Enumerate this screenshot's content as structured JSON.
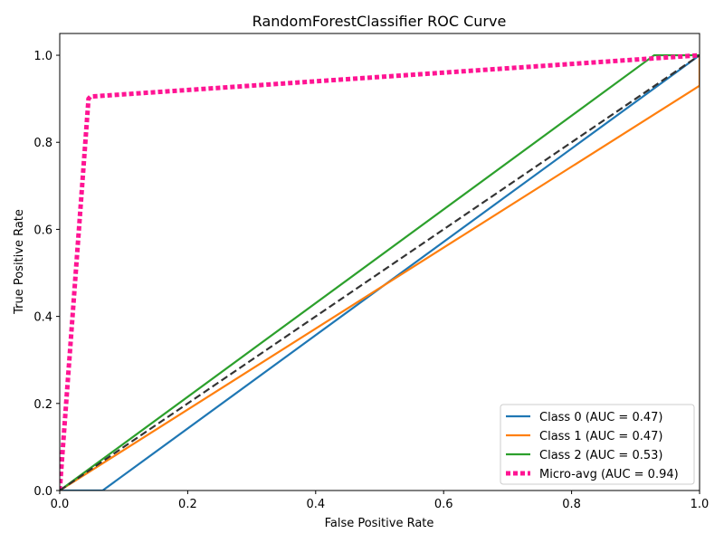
{
  "chart_data": {
    "type": "line",
    "title": "RandomForestClassifier ROC Curve",
    "xlabel": "False Positive Rate",
    "ylabel": "True Positive Rate",
    "xlim": [
      0.0,
      1.0
    ],
    "ylim": [
      0.0,
      1.05
    ],
    "xticks": [
      0.0,
      0.2,
      0.4,
      0.6,
      0.8,
      1.0
    ],
    "yticks": [
      0.0,
      0.2,
      0.4,
      0.6,
      0.8,
      1.0
    ],
    "xtick_labels": [
      "0.0",
      "0.2",
      "0.4",
      "0.6",
      "0.8",
      "1.0"
    ],
    "ytick_labels": [
      "0.0",
      "0.2",
      "0.4",
      "0.6",
      "0.8",
      "1.0"
    ],
    "grid": false,
    "legend_position": "bottom-right",
    "series": [
      {
        "name": "Class 0 (AUC = 0.47)",
        "color": "#1f77b4",
        "style": "solid",
        "x": [
          0.0,
          0.067,
          1.0,
          1.0
        ],
        "y": [
          0.0,
          0.0,
          1.0,
          1.0
        ]
      },
      {
        "name": "Class 1 (AUC = 0.47)",
        "color": "#ff7f0e",
        "style": "solid",
        "x": [
          0.0,
          1.0,
          1.0
        ],
        "y": [
          0.0,
          0.93,
          1.0
        ]
      },
      {
        "name": "Class 2 (AUC = 0.53)",
        "color": "#2ca02c",
        "style": "solid",
        "x": [
          0.0,
          0.929,
          1.0,
          1.0
        ],
        "y": [
          0.0,
          1.0,
          1.0,
          1.0
        ]
      },
      {
        "name": "Micro-avg (AUC = 0.94)",
        "color": "#ff1493",
        "style": "dotted",
        "x": [
          0.0,
          0.045,
          0.048,
          1.0
        ],
        "y": [
          0.0,
          0.9,
          0.905,
          1.0
        ]
      }
    ],
    "reference_line": {
      "color": "#333333",
      "style": "dashed",
      "x": [
        0.0,
        1.0
      ],
      "y": [
        0.0,
        1.0
      ]
    }
  }
}
